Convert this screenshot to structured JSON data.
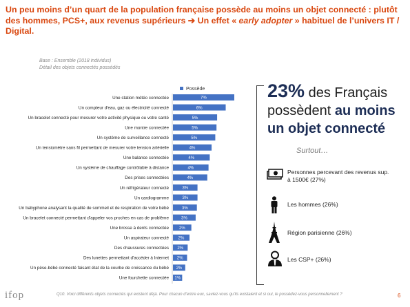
{
  "header": {
    "title_part1": "Un peu moins d’un quart de la population française possède au moins un objet connecté : plutôt des hommes, PCS+, aux revenus supérieurs ",
    "title_arrow": "➔",
    "title_part2": " Un effet « ",
    "title_italic": "early adopter",
    "title_part3": " » habituel de l’univers IT / Digital."
  },
  "base_note": {
    "line1": "Base : Ensemble (2018 individus)",
    "line2": "Détail des objets connectés possédés"
  },
  "colors": {
    "bar": "#4472c4",
    "title": "#d9470f",
    "navy": "#1c2d55"
  },
  "chart_data": {
    "type": "bar",
    "orientation": "horizontal",
    "legend": "Possède",
    "legend_position": "top",
    "value_suffix": "%",
    "categories": [
      "Une station météo connectée",
      "Un compteur d'eau, gaz ou électricité connecté",
      "Un bracelet connecté pour mesurer votre activité physique ou votre santé",
      "Une montre connectée",
      "Un système de surveillance connecté",
      "Un tensiomètre sans fil permettant de mesurer votre tension artérielle",
      "Une balance connectée",
      "Un système de chauffage contrôlable à distance",
      "Des prises connectées",
      "Un réfrigérateur connecté",
      "Un cardiogramme",
      "Un babyphone analysant la qualité de sommeil et de respiration de votre bébé",
      "Un bracelet connecté permettant d'appeler vos proches en cas de problème",
      "Une brosse à dents connectée",
      "Un aspirateur connecté",
      "Des chaussures connectées",
      "Des lunettes permettant d'accéder à Internet",
      "Un pèse-bébé connecté faisant état de la courbe de croissance du bébé",
      "Une fourchette connectée"
    ],
    "values": [
      7,
      6,
      5,
      5,
      5,
      4,
      4,
      4,
      4,
      3,
      3,
      3,
      3,
      2,
      2,
      2,
      2,
      2,
      1
    ],
    "bar_length_relative": [
      1.0,
      0.86,
      0.72,
      0.71,
      0.69,
      0.63,
      0.6,
      0.58,
      0.56,
      0.4,
      0.4,
      0.39,
      0.37,
      0.3,
      0.27,
      0.24,
      0.23,
      0.2,
      0.15
    ]
  },
  "summary": {
    "pct": "23%",
    "text1": " des Français possèdent ",
    "bold": "au moins un objet connecté",
    "surtout": "Surtout…"
  },
  "features": [
    {
      "icon": "money-icon",
      "text": "Personnes percevant des revenus sup. à 1500€ (27%)"
    },
    {
      "icon": "man-icon",
      "text": "Les hommes (26%)"
    },
    {
      "icon": "eiffel-tower-icon",
      "text": "Région parisienne (26%)"
    },
    {
      "icon": "manager-icon",
      "text": "Les CSP+ (26%)"
    }
  ],
  "footer": {
    "logo": "ifop",
    "question": "Q10.  Voici différents objets connectés qui existent déjà. Pour chacun d’entre eux, saviez-vous qu’ils existaient et si oui, le possédez-vous personnellement ?",
    "page": "6"
  }
}
